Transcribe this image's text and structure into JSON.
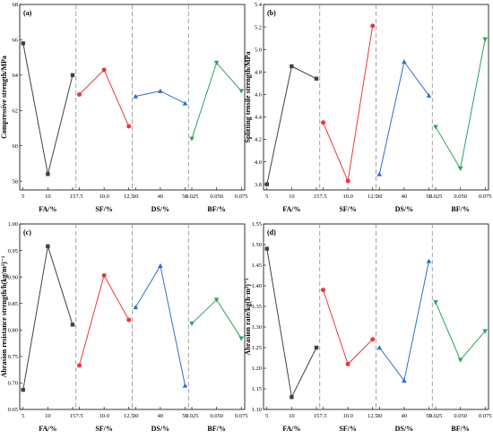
{
  "chart_data": [
    {
      "id": "a",
      "type": "line",
      "panel_label": "(a)",
      "ylabel": "Compressive strength/MPa",
      "ylim": [
        57.5,
        68
      ],
      "yticks": [
        "58",
        "60",
        "62",
        "64",
        "66",
        "68"
      ],
      "yticks_values": [
        58,
        60,
        62,
        64,
        66,
        68
      ],
      "grid": false,
      "groups": [
        {
          "label": "FA/%",
          "categories": [
            "5",
            "10",
            "15"
          ],
          "values": [
            65.8,
            58.4,
            64.0
          ],
          "color": "#404040",
          "marker": "square"
        },
        {
          "label": "SF/%",
          "categories": [
            "7.5",
            "10.0",
            "12.5"
          ],
          "values": [
            62.9,
            64.3,
            61.1
          ],
          "color": "#e8393a",
          "marker": "circle"
        },
        {
          "label": "DS/%",
          "categories": [
            "30",
            "40",
            "50"
          ],
          "values": [
            62.8,
            63.1,
            62.4
          ],
          "color": "#2b6ed4",
          "marker": "triangle-up"
        },
        {
          "label": "BF/%",
          "categories": [
            "0.025",
            "0.050",
            "0.075"
          ],
          "values": [
            60.4,
            64.7,
            63.1
          ],
          "color": "#27a35a",
          "marker": "triangle-down"
        }
      ]
    },
    {
      "id": "b",
      "type": "line",
      "panel_label": "(b)",
      "ylabel": "Splitting tensile strength/MPa",
      "ylim": [
        3.75,
        5.4
      ],
      "yticks": [
        "3.8",
        "4.0",
        "4.2",
        "4.4",
        "4.6",
        "4.8",
        "5.0",
        "5.2",
        "5.4"
      ],
      "yticks_values": [
        3.8,
        4.0,
        4.2,
        4.4,
        4.6,
        4.8,
        5.0,
        5.2,
        5.4
      ],
      "grid": false,
      "groups": [
        {
          "label": "FA/%",
          "categories": [
            "5",
            "10",
            "15"
          ],
          "values": [
            3.8,
            4.85,
            4.74
          ],
          "color": "#404040",
          "marker": "square"
        },
        {
          "label": "SF/%",
          "categories": [
            "7.5",
            "10.0",
            "12.5"
          ],
          "values": [
            4.35,
            3.83,
            5.21
          ],
          "color": "#e8393a",
          "marker": "circle"
        },
        {
          "label": "DS/%",
          "categories": [
            "30",
            "40",
            "50"
          ],
          "values": [
            3.89,
            4.89,
            4.59
          ],
          "color": "#2b6ed4",
          "marker": "triangle-up"
        },
        {
          "label": "BF/%",
          "categories": [
            "0.025",
            "0.050",
            "0.075"
          ],
          "values": [
            4.31,
            3.94,
            5.09
          ],
          "color": "#27a35a",
          "marker": "triangle-down"
        }
      ]
    },
    {
      "id": "c",
      "type": "line",
      "panel_label": "(c)",
      "ylabel": "Abrasion resistance strength/h(kg/m²)⁻¹",
      "ylim": [
        0.65,
        1.0
      ],
      "yticks": [
        "0.65",
        "0.70",
        "0.75",
        "0.80",
        "0.85",
        "0.90",
        "0.95",
        "1.00"
      ],
      "yticks_values": [
        0.65,
        0.7,
        0.75,
        0.8,
        0.85,
        0.9,
        0.95,
        1.0
      ],
      "grid": false,
      "groups": [
        {
          "label": "FA/%",
          "categories": [
            "5",
            "10",
            "15"
          ],
          "values": [
            0.687,
            0.958,
            0.81
          ],
          "color": "#404040",
          "marker": "square"
        },
        {
          "label": "SF/%",
          "categories": [
            "7.5",
            "10.0",
            "12.5"
          ],
          "values": [
            0.733,
            0.903,
            0.819
          ],
          "color": "#e8393a",
          "marker": "circle"
        },
        {
          "label": "DS/%",
          "categories": [
            "30",
            "40",
            "50"
          ],
          "values": [
            0.843,
            0.921,
            0.695
          ],
          "color": "#2b6ed4",
          "marker": "triangle-up"
        },
        {
          "label": "BF/%",
          "categories": [
            "0.025",
            "0.050",
            "0.075"
          ],
          "values": [
            0.812,
            0.857,
            0.784
          ],
          "color": "#27a35a",
          "marker": "triangle-down"
        }
      ]
    },
    {
      "id": "d",
      "type": "line",
      "panel_label": "(d)",
      "ylabel": "Abrasion rate/kg(h·m²)⁻¹",
      "ylim": [
        1.1,
        1.55
      ],
      "yticks": [
        "1.10",
        "1.15",
        "1.20",
        "1.25",
        "1.30",
        "1.35",
        "1.40",
        "1.45",
        "1.50",
        "1.55"
      ],
      "yticks_values": [
        1.1,
        1.15,
        1.2,
        1.25,
        1.3,
        1.35,
        1.4,
        1.45,
        1.5,
        1.55
      ],
      "grid": false,
      "groups": [
        {
          "label": "FA/%",
          "categories": [
            "5",
            "10",
            "15"
          ],
          "values": [
            1.49,
            1.13,
            1.25
          ],
          "color": "#404040",
          "marker": "square"
        },
        {
          "label": "SF/%",
          "categories": [
            "7.5",
            "10.0",
            "12.5"
          ],
          "values": [
            1.39,
            1.21,
            1.27
          ],
          "color": "#e8393a",
          "marker": "circle"
        },
        {
          "label": "DS/%",
          "categories": [
            "30",
            "40",
            "50"
          ],
          "values": [
            1.25,
            1.17,
            1.46
          ],
          "color": "#2b6ed4",
          "marker": "triangle-up"
        },
        {
          "label": "BF/%",
          "categories": [
            "0.025",
            "0.050",
            "0.075"
          ],
          "values": [
            1.36,
            1.22,
            1.29
          ],
          "color": "#27a35a",
          "marker": "triangle-down"
        }
      ]
    }
  ]
}
